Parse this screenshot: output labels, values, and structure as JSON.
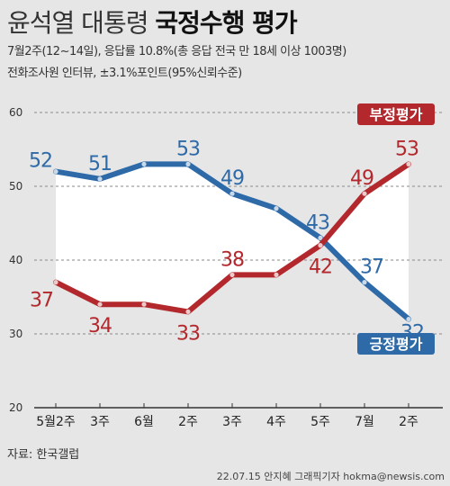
{
  "header": {
    "title_light": "윤석열 대통령",
    "title_bold": "국정수행 평가",
    "subtitle1": "7월2주(12~14일), 응답률 10.8%(총 응답 전국 만 18세 이상 1003명)",
    "subtitle2": "전화조사원 인터뷰, ±3.1%포인트(95%신뢰수준)"
  },
  "footer": {
    "source": "자료: 한국갤럽",
    "credit": "22.07.15 안지혜 그래픽기자 hokma@newsis.com"
  },
  "chart_data": {
    "type": "line",
    "categories": [
      "5월2주",
      "3주",
      "6월",
      "2주",
      "3주",
      "4주",
      "5주",
      "7월",
      "2주"
    ],
    "series": [
      {
        "name": "긍정평가",
        "values": [
          52,
          51,
          53,
          53,
          49,
          47,
          43,
          37,
          32
        ],
        "color": "#2e6aa8"
      },
      {
        "name": "부정평가",
        "values": [
          37,
          34,
          34,
          33,
          38,
          38,
          42,
          49,
          53
        ],
        "color": "#b3282d"
      }
    ],
    "ylim": [
      20,
      60
    ],
    "yticks": [
      20,
      30,
      40,
      50,
      60
    ],
    "grid": true,
    "legend": "inline labels"
  }
}
